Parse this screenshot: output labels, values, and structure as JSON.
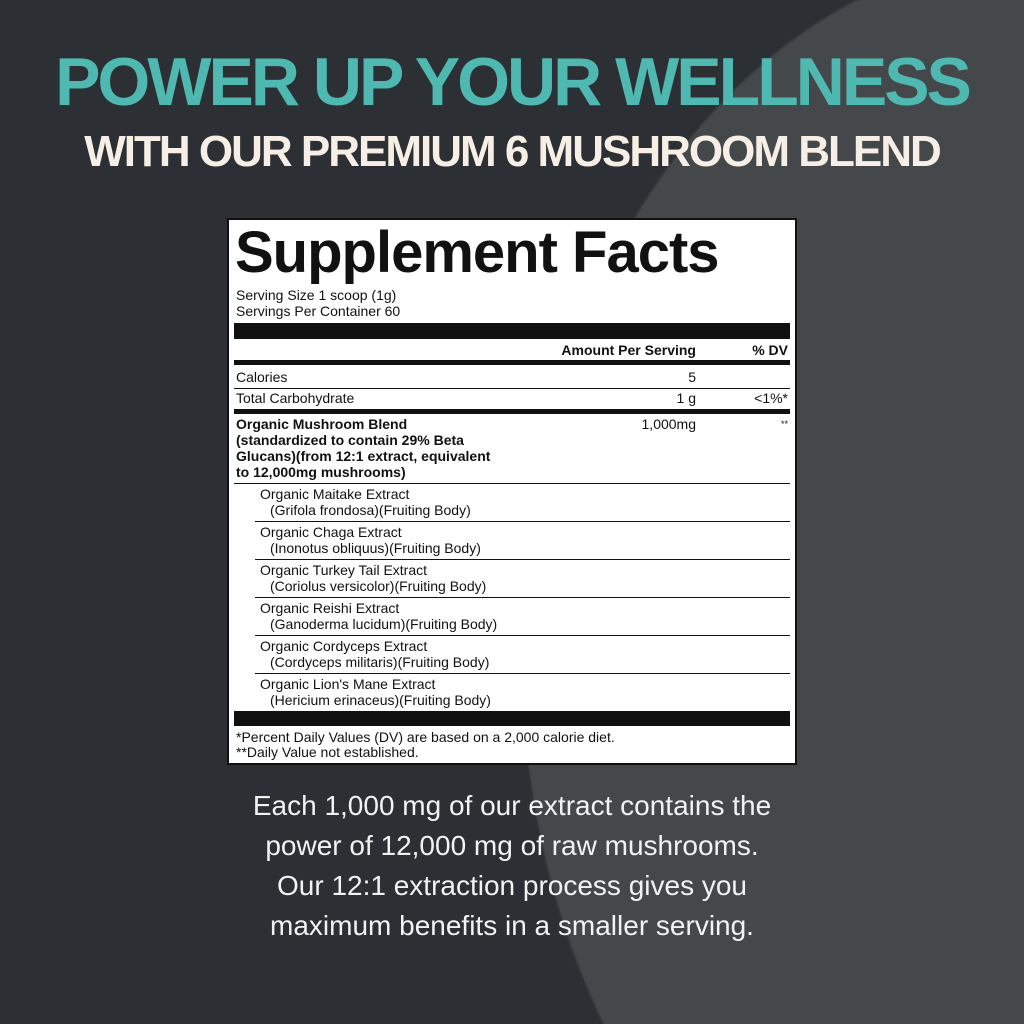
{
  "headline": "POWER UP YOUR WELLNESS",
  "subheadline": "WITH OUR PREMIUM 6 MUSHROOM BLEND",
  "colors": {
    "headline": "#4fb8b0",
    "subheadline": "#f7efe6",
    "background": "#2c2f33",
    "blob": "#45484b"
  },
  "facts": {
    "title": "Supplement Facts",
    "serving_size": "Serving Size 1 scoop (1g)",
    "servings_per_container": "Servings Per Container 60",
    "col_amount": "Amount Per Serving",
    "col_dv": "% DV",
    "rows": [
      {
        "name": "Calories",
        "amount": "5",
        "dv": ""
      },
      {
        "name": "Total Carbohydrate",
        "amount": "1 g",
        "dv": "<1%*"
      }
    ],
    "blend": {
      "name": "Organic Mushroom Blend",
      "detail_lines": [
        "(standardized to contain 29% Beta",
        "Glucans)(from 12:1 extract, equivalent",
        "to 12,000mg mushrooms)"
      ],
      "amount": "1,000mg",
      "dv": "**"
    },
    "ingredients": [
      {
        "name": "Organic Maitake Extract",
        "source": "(Grifola frondosa)(Fruiting Body)"
      },
      {
        "name": "Organic Chaga Extract",
        "source": "(Inonotus obliquus)(Fruiting Body)"
      },
      {
        "name": "Organic Turkey Tail Extract",
        "source": "(Coriolus versicolor)(Fruiting Body)"
      },
      {
        "name": "Organic Reishi Extract",
        "source": "(Ganoderma lucidum)(Fruiting Body)"
      },
      {
        "name": "Organic Cordyceps Extract",
        "source": "(Cordyceps militaris)(Fruiting Body)"
      },
      {
        "name": "Organic Lion's Mane Extract",
        "source": "(Hericium erinaceus)(Fruiting Body)"
      }
    ],
    "footnotes": [
      "*Percent Daily Values (DV) are based on a 2,000 calorie diet.",
      "**Daily Value not established."
    ]
  },
  "description": [
    "Each 1,000 mg of our extract contains the",
    "power of 12,000 mg of raw mushrooms.",
    "Our 12:1 extraction process gives you",
    "maximum benefits in a smaller serving."
  ]
}
